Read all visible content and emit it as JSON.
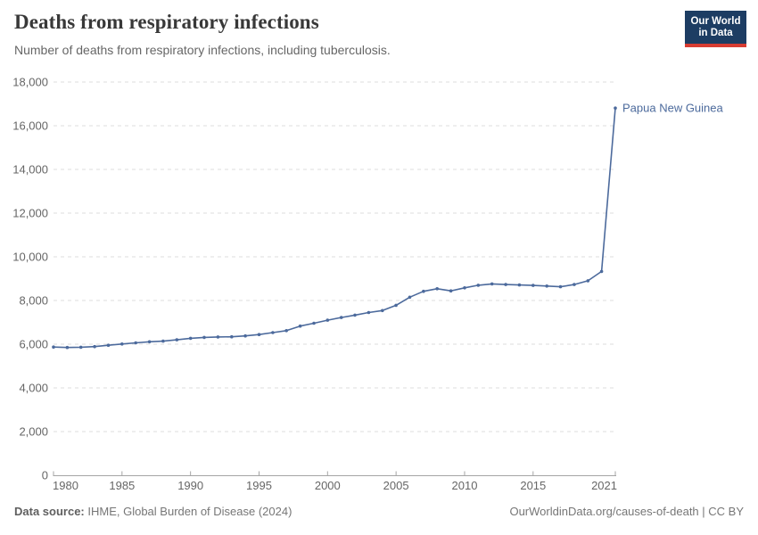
{
  "header": {
    "title": "Deaths from respiratory infections",
    "subtitle": "Number of deaths from respiratory infections, including tuberculosis.",
    "logo": {
      "line1": "Our World",
      "line2": "in Data"
    }
  },
  "chart_data": {
    "type": "line",
    "title": "Deaths from respiratory infections",
    "subtitle": "Number of deaths from respiratory infections, including tuberculosis.",
    "x": [
      1980,
      1981,
      1982,
      1983,
      1984,
      1985,
      1986,
      1987,
      1988,
      1989,
      1990,
      1991,
      1992,
      1993,
      1994,
      1995,
      1996,
      1997,
      1998,
      1999,
      2000,
      2001,
      2002,
      2003,
      2004,
      2005,
      2006,
      2007,
      2008,
      2009,
      2010,
      2011,
      2012,
      2013,
      2014,
      2015,
      2016,
      2017,
      2018,
      2019,
      2020,
      2021
    ],
    "series": [
      {
        "name": "Papua New Guinea",
        "color": "#4c6a9c",
        "values": [
          5870,
          5850,
          5860,
          5890,
          5950,
          6010,
          6060,
          6110,
          6140,
          6200,
          6270,
          6310,
          6330,
          6340,
          6380,
          6440,
          6530,
          6620,
          6830,
          6960,
          7100,
          7220,
          7330,
          7450,
          7540,
          7780,
          8150,
          8420,
          8540,
          8440,
          8580,
          8700,
          8760,
          8730,
          8710,
          8690,
          8660,
          8630,
          8730,
          8900,
          9330,
          16810
        ]
      }
    ],
    "xlabel": "",
    "ylabel": "",
    "ylim": [
      0,
      18000
    ],
    "y_ticks": [
      0,
      2000,
      4000,
      6000,
      8000,
      10000,
      12000,
      14000,
      16000,
      18000
    ],
    "x_ticks": [
      1980,
      1985,
      1990,
      1995,
      2000,
      2005,
      2010,
      2015,
      2021
    ],
    "grid": "horizontal-dashed",
    "legend_position": "end-of-line-label"
  },
  "footer": {
    "source_label": "Data source:",
    "source_value": "IHME, Global Burden of Disease (2024)",
    "link": "OurWorldinData.org/causes-of-death | CC BY"
  },
  "colors": {
    "line": "#4c6a9c",
    "grid": "#dedede",
    "axis": "#a5a5a5",
    "tick_text": "#666666",
    "title_text": "#383838",
    "logo_bg": "#1d3d63",
    "logo_stripe": "#d73c32"
  }
}
